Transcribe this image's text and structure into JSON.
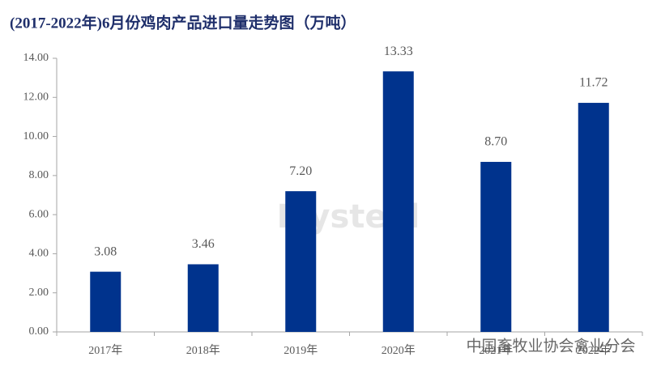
{
  "chart_data": {
    "type": "bar",
    "title": "(2017-2022年)6月份鸡肉产品进口量走势图（万吨）",
    "categories": [
      "2017年",
      "2018年",
      "2019年",
      "2020年",
      "2021年",
      "2022年"
    ],
    "values": [
      3.08,
      3.46,
      7.2,
      13.33,
      8.7,
      11.72
    ],
    "value_labels": [
      "3.08",
      "3.46",
      "7.20",
      "13.33",
      "8.70",
      "11.72"
    ],
    "color": "#00338d",
    "ylim": [
      0,
      14
    ],
    "yticks": [
      {
        "value": 0,
        "label": "0.00"
      },
      {
        "value": 2,
        "label": "2.00"
      },
      {
        "value": 4,
        "label": "4.00"
      },
      {
        "value": 6,
        "label": "6.00"
      },
      {
        "value": 8,
        "label": "8.00"
      },
      {
        "value": 10,
        "label": "10.00"
      },
      {
        "value": 12,
        "label": "12.00"
      },
      {
        "value": 14,
        "label": "14.00"
      }
    ],
    "grid": false,
    "watermarks": [
      "Mysteel",
      "中国畜牧业协会禽业分会"
    ]
  }
}
